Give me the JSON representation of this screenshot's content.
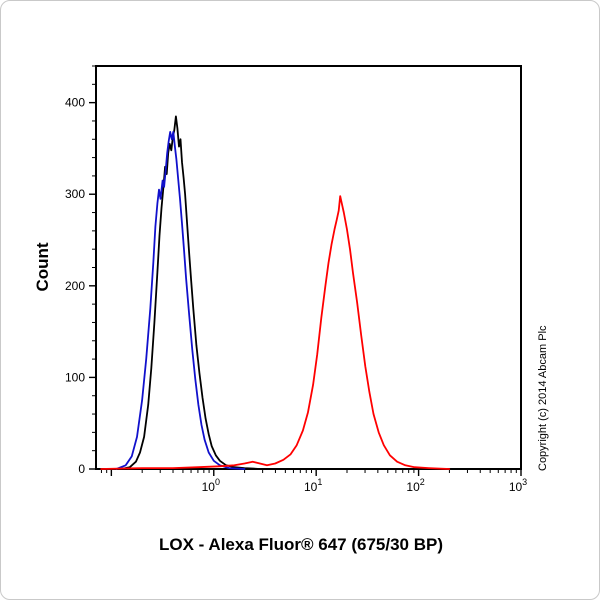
{
  "copyright": "Copyright (c) 2014 Abcam Plc",
  "chart_data": {
    "type": "line",
    "subtype": "flow-cytometry-histogram",
    "xlabel": "LOX - Alexa Fluor® 647 (675/30 BP)",
    "ylabel": "Count",
    "x_scale": "log",
    "x_range_log10": [
      -1.15,
      3
    ],
    "ylim": [
      0,
      440
    ],
    "y_ticks": [
      0,
      100,
      200,
      300,
      400
    ],
    "y_minor_step": 20,
    "x_major_ticks_exponents": [
      0,
      1,
      2,
      3
    ],
    "x_unlabeled_major_exponents": [
      -1
    ],
    "grid": false,
    "legend": "none",
    "colors": {
      "axis": "#000000",
      "background": "#ffffff"
    },
    "series": [
      {
        "name": "black-curve",
        "color": "#000000",
        "points": [
          [
            -0.9,
            0
          ],
          [
            -0.82,
            2
          ],
          [
            -0.76,
            8
          ],
          [
            -0.72,
            18
          ],
          [
            -0.68,
            35
          ],
          [
            -0.64,
            70
          ],
          [
            -0.61,
            110
          ],
          [
            -0.58,
            160
          ],
          [
            -0.55,
            215
          ],
          [
            -0.53,
            255
          ],
          [
            -0.51,
            285
          ],
          [
            -0.49,
            310
          ],
          [
            -0.475,
            330
          ],
          [
            -0.46,
            322
          ],
          [
            -0.445,
            345
          ],
          [
            -0.43,
            355
          ],
          [
            -0.415,
            348
          ],
          [
            -0.4,
            362
          ],
          [
            -0.385,
            370
          ],
          [
            -0.37,
            385
          ],
          [
            -0.355,
            372
          ],
          [
            -0.34,
            352
          ],
          [
            -0.325,
            360
          ],
          [
            -0.31,
            335
          ],
          [
            -0.295,
            318
          ],
          [
            -0.28,
            300
          ],
          [
            -0.26,
            268
          ],
          [
            -0.24,
            235
          ],
          [
            -0.22,
            205
          ],
          [
            -0.2,
            175
          ],
          [
            -0.17,
            135
          ],
          [
            -0.14,
            105
          ],
          [
            -0.11,
            78
          ],
          [
            -0.08,
            55
          ],
          [
            -0.05,
            38
          ],
          [
            -0.02,
            25
          ],
          [
            0.02,
            15
          ],
          [
            0.06,
            9
          ],
          [
            0.12,
            4
          ],
          [
            0.2,
            2
          ],
          [
            0.3,
            1
          ],
          [
            0.45,
            0
          ]
        ]
      },
      {
        "name": "blue-curve",
        "color": "#1111cc",
        "points": [
          [
            -0.95,
            0
          ],
          [
            -0.86,
            4
          ],
          [
            -0.8,
            14
          ],
          [
            -0.75,
            35
          ],
          [
            -0.7,
            75
          ],
          [
            -0.66,
            120
          ],
          [
            -0.62,
            175
          ],
          [
            -0.59,
            225
          ],
          [
            -0.57,
            265
          ],
          [
            -0.55,
            290
          ],
          [
            -0.535,
            305
          ],
          [
            -0.52,
            295
          ],
          [
            -0.5,
            315
          ],
          [
            -0.485,
            308
          ],
          [
            -0.47,
            325
          ],
          [
            -0.455,
            345
          ],
          [
            -0.44,
            358
          ],
          [
            -0.425,
            368
          ],
          [
            -0.41,
            360
          ],
          [
            -0.395,
            368
          ],
          [
            -0.38,
            352
          ],
          [
            -0.365,
            338
          ],
          [
            -0.35,
            320
          ],
          [
            -0.33,
            295
          ],
          [
            -0.31,
            268
          ],
          [
            -0.29,
            238
          ],
          [
            -0.27,
            208
          ],
          [
            -0.24,
            168
          ],
          [
            -0.21,
            130
          ],
          [
            -0.18,
            98
          ],
          [
            -0.15,
            70
          ],
          [
            -0.12,
            48
          ],
          [
            -0.09,
            32
          ],
          [
            -0.05,
            18
          ],
          [
            0.0,
            9
          ],
          [
            0.06,
            4
          ],
          [
            0.15,
            1
          ],
          [
            0.3,
            0
          ]
        ]
      },
      {
        "name": "red-curve",
        "color": "#ff0000",
        "points": [
          [
            -1.1,
            0
          ],
          [
            -0.7,
            1
          ],
          [
            -0.4,
            1
          ],
          [
            -0.15,
            2
          ],
          [
            0.05,
            3
          ],
          [
            0.2,
            4
          ],
          [
            0.3,
            6
          ],
          [
            0.38,
            8
          ],
          [
            0.45,
            6
          ],
          [
            0.52,
            4
          ],
          [
            0.6,
            6
          ],
          [
            0.68,
            10
          ],
          [
            0.75,
            16
          ],
          [
            0.81,
            26
          ],
          [
            0.87,
            42
          ],
          [
            0.92,
            62
          ],
          [
            0.97,
            92
          ],
          [
            1.01,
            125
          ],
          [
            1.05,
            165
          ],
          [
            1.09,
            200
          ],
          [
            1.12,
            225
          ],
          [
            1.15,
            245
          ],
          [
            1.18,
            262
          ],
          [
            1.2,
            272
          ],
          [
            1.22,
            282
          ],
          [
            1.235,
            298
          ],
          [
            1.25,
            290
          ],
          [
            1.27,
            280
          ],
          [
            1.3,
            262
          ],
          [
            1.33,
            240
          ],
          [
            1.36,
            214
          ],
          [
            1.4,
            182
          ],
          [
            1.44,
            146
          ],
          [
            1.48,
            112
          ],
          [
            1.52,
            84
          ],
          [
            1.56,
            60
          ],
          [
            1.61,
            40
          ],
          [
            1.66,
            26
          ],
          [
            1.72,
            15
          ],
          [
            1.79,
            8
          ],
          [
            1.87,
            4
          ],
          [
            1.96,
            2
          ],
          [
            2.1,
            1
          ],
          [
            2.3,
            0
          ]
        ]
      }
    ]
  }
}
